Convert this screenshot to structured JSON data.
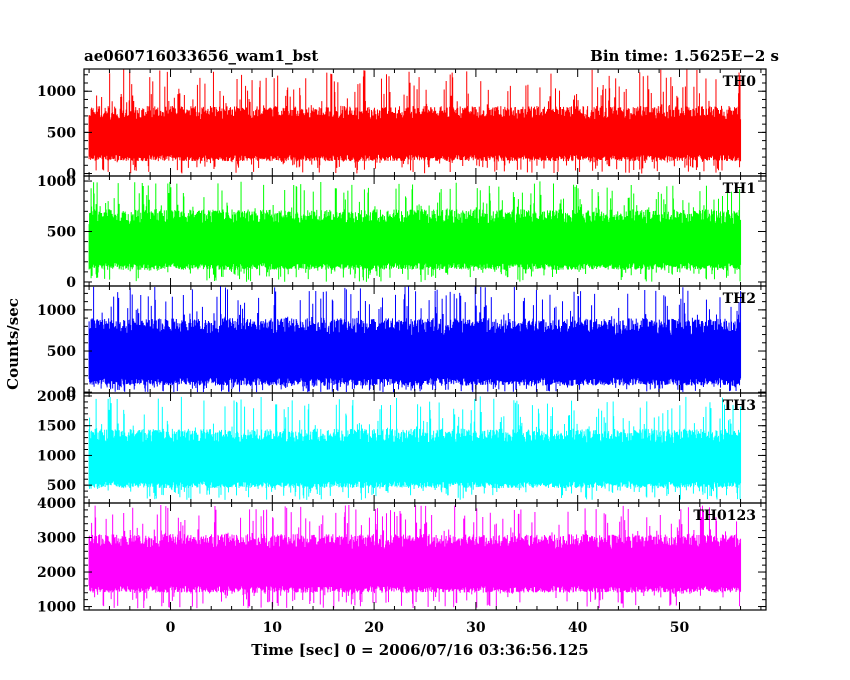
{
  "header": {
    "left": "ae060716033656_wam1_bst",
    "right": "Bin time: 1.5625E−2 s"
  },
  "chart_data": {
    "type": "line",
    "title": "ae060716033656_wam1_bst",
    "subtitle": "Bin time: 1.5625E−2 s",
    "xlabel": "Time [sec] 0 = 2006/07/16 03:36:56.125",
    "ylabel": "Counts/sec",
    "xlim": [
      -8.5,
      58.5
    ],
    "x_ticks": [
      0,
      10,
      20,
      30,
      40,
      50
    ],
    "x_tick_labels": [
      "0",
      "10",
      "20",
      "30",
      "40",
      "50"
    ],
    "data_x_range": [
      -8.0,
      56.0
    ],
    "panels": [
      {
        "name": "TH0",
        "color": "#ff0000",
        "ylim": [
          -30,
          1270
        ],
        "y_ticks": [
          0,
          500,
          1000
        ],
        "y_tick_labels": [
          "0",
          "500",
          "1000"
        ],
        "typical_low": 150,
        "typical_high": 820,
        "spike_max": 1270,
        "min": 0
      },
      {
        "name": "TH1",
        "color": "#00ff00",
        "ylim": [
          -40,
          1050
        ],
        "y_ticks": [
          0,
          500,
          1000
        ],
        "y_tick_labels": [
          "0",
          "500",
          "1000"
        ],
        "typical_low": 120,
        "typical_high": 720,
        "spike_max": 1000,
        "min": 0
      },
      {
        "name": "TH2",
        "color": "#0000ff",
        "ylim": [
          -10,
          1290
        ],
        "y_ticks": [
          0,
          500,
          1000
        ],
        "y_tick_labels": [
          "0",
          "500",
          "1000"
        ],
        "typical_low": 80,
        "typical_high": 900,
        "spike_max": 1290,
        "min": 0
      },
      {
        "name": "TH3",
        "color": "#00ffff",
        "ylim": [
          200,
          2050
        ],
        "y_ticks": [
          500,
          1000,
          1500,
          2000
        ],
        "y_tick_labels": [
          "500",
          "1000",
          "1500",
          "2000"
        ],
        "typical_low": 450,
        "typical_high": 1450,
        "spike_max": 2000,
        "min": 250
      },
      {
        "name": "TH0123",
        "color": "#ff00ff",
        "ylim": [
          900,
          4000
        ],
        "y_ticks": [
          1000,
          2000,
          3000,
          4000
        ],
        "y_tick_labels": [
          "1000",
          "2000",
          "3000",
          "4000"
        ],
        "typical_low": 1400,
        "typical_high": 3100,
        "spike_max": 3950,
        "min": 950
      }
    ],
    "grid": false,
    "legend": "none"
  }
}
